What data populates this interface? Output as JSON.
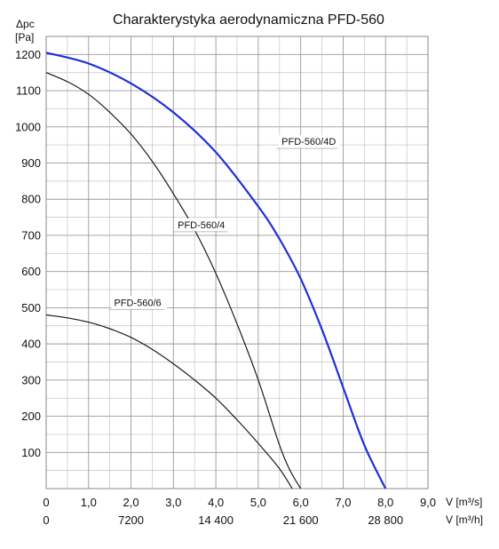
{
  "chart_data": {
    "type": "line",
    "title": "Charakterystyka aerodynamiczna PFD-560",
    "ylabel": [
      "Δpc",
      "[Pa]"
    ],
    "xlabel": "V [m³/s]",
    "xlabel2": "V [m³/h]",
    "xlim": [
      0,
      9
    ],
    "ylim": [
      0,
      1250
    ],
    "x_ticks": [
      "0",
      "1,0",
      "2,0",
      "3,0",
      "4,0",
      "5,0",
      "6,0",
      "7,0",
      "8,0",
      "9,0"
    ],
    "x2_ticks": [
      {
        "value": 0,
        "label": "0"
      },
      {
        "value": 2,
        "label": "7200"
      },
      {
        "value": 4,
        "label": "14 400"
      },
      {
        "value": 6,
        "label": "21 600"
      },
      {
        "value": 8,
        "label": "28 800"
      }
    ],
    "y_ticks": [
      100,
      200,
      300,
      400,
      500,
      600,
      700,
      800,
      900,
      1000,
      1100,
      1200
    ],
    "series": [
      {
        "name": "PFD-560/4D",
        "color": "#1f2fd8",
        "label_at": [
          5.55,
          950
        ],
        "x": [
          0,
          1,
          2,
          3,
          4,
          5,
          5.5,
          6,
          6.5,
          7,
          7.5,
          8
        ],
        "y": [
          1205,
          1175,
          1120,
          1040,
          930,
          780,
          690,
          580,
          440,
          280,
          120,
          0
        ]
      },
      {
        "name": "PFD-560/4",
        "color": "#1a1a1a",
        "label_at": [
          3.1,
          720
        ],
        "x": [
          0,
          0.5,
          1,
          1.5,
          2,
          2.5,
          3,
          3.5,
          4,
          4.5,
          5,
          5.5,
          5.75,
          6
        ],
        "y": [
          1150,
          1125,
          1090,
          1040,
          980,
          905,
          815,
          715,
          595,
          455,
          300,
          120,
          50,
          0
        ]
      },
      {
        "name": "PFD-560/6",
        "color": "#1a1a1a",
        "label_at": [
          1.6,
          505
        ],
        "x": [
          0,
          0.5,
          1,
          1.5,
          2,
          2.5,
          3,
          3.5,
          4,
          4.5,
          5,
          5.5,
          5.8
        ],
        "y": [
          480,
          472,
          460,
          442,
          418,
          385,
          345,
          300,
          250,
          190,
          125,
          55,
          0
        ]
      }
    ]
  }
}
